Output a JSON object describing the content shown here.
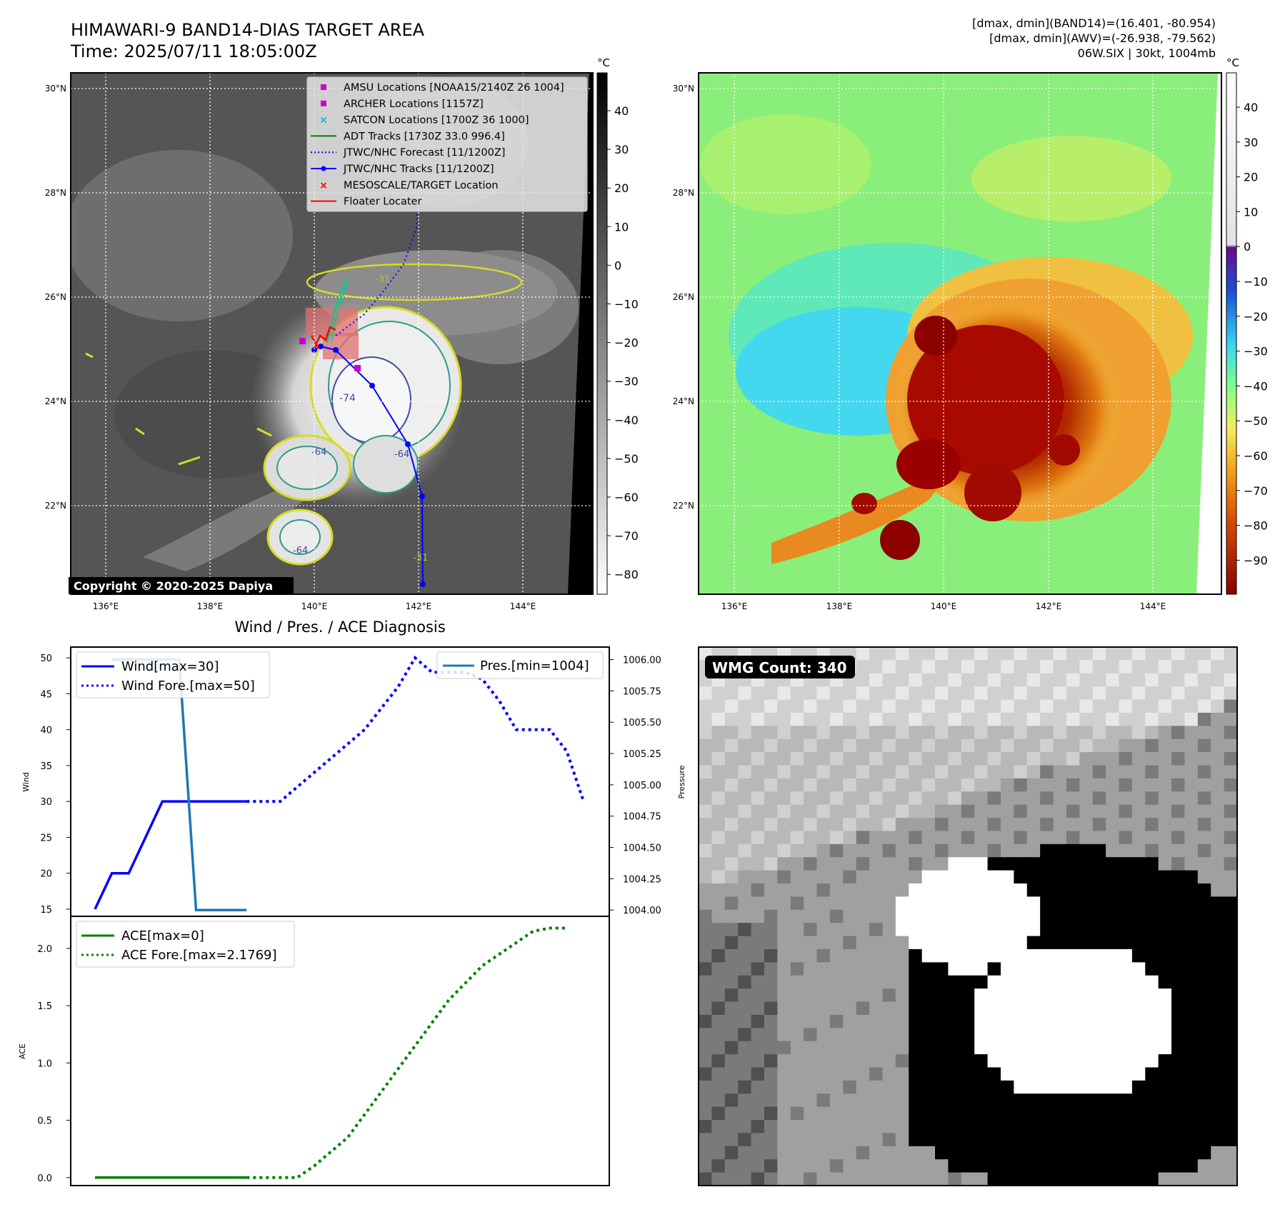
{
  "header": {
    "title_line1": "HIMAWARI-9 BAND14-DIAS TARGET AREA",
    "title_line2": "Time: 2025/07/11 18:05:00Z",
    "info_line1": "[dmax, dmin](BAND14)=(16.401, -80.954)",
    "info_line2": "[dmax, dmin](AWV)=(-26.938, -79.562)",
    "info_line3": "06W.SIX | 30kt, 1004mb"
  },
  "map_axes": {
    "lat_labels": [
      "30°N",
      "28°N",
      "26°N",
      "24°N",
      "22°N"
    ],
    "lon_labels": [
      "136°E",
      "138°E",
      "140°E",
      "142°E",
      "144°E"
    ],
    "colorbar_unit": "°C"
  },
  "panel_ir": {
    "copyright": "Copyright © 2020-2025 Dapiya",
    "colorbar_ticks": [
      "40",
      "30",
      "20",
      "10",
      "0",
      "−10",
      "−20",
      "−30",
      "−40",
      "−50",
      "−60",
      "−70",
      "−80"
    ],
    "legend": [
      {
        "label": "AMSU Locations [NOAA15/2140Z 26 1004]",
        "marker": "square",
        "color": "#cc00cc"
      },
      {
        "label": "ARCHER Locations [1157Z]",
        "marker": "square",
        "color": "#cc00cc"
      },
      {
        "label": "SATCON Locations [1700Z 36 1000]",
        "marker": "x",
        "color": "#00bbbb"
      },
      {
        "label": "ADT Tracks [1730Z 33.0 996.4]",
        "marker": "line",
        "color": "#008000"
      },
      {
        "label": "JTWC/NHC Forecast [11/1200Z]",
        "marker": "dotted",
        "color": "#0000ff"
      },
      {
        "label": "JTWC/NHC Tracks [11/1200Z]",
        "marker": "line-dot",
        "color": "#0000ff"
      },
      {
        "label": "MESOSCALE/TARGET Location",
        "marker": "x",
        "color": "#ff0000"
      },
      {
        "label": "Floater Locater",
        "marker": "line",
        "color": "#ff0000"
      }
    ],
    "contour_labels": [
      "-31",
      "-31",
      "-64",
      "-64",
      "-64",
      "-31",
      "-74"
    ]
  },
  "panel_awv": {
    "colorbar_ticks": [
      "40",
      "30",
      "20",
      "10",
      "0",
      "−10",
      "−20",
      "−30",
      "−40",
      "−50",
      "−60",
      "−70",
      "−80",
      "−90"
    ]
  },
  "wmg": {
    "badge": "WMG Count: 340"
  },
  "chart_data": [
    {
      "type": "line",
      "title": "Wind / Pres. / ACE Diagnosis",
      "ylabel": "Wind",
      "ylabel_right": "Pressure",
      "ylim": [
        14,
        51.5
      ],
      "ylim_right": [
        1003.95,
        1006.1
      ],
      "yticks": [
        "50",
        "45",
        "40",
        "35",
        "30",
        "25",
        "20",
        "15"
      ],
      "yticks_right": [
        "1006.00",
        "1005.75",
        "1005.50",
        "1005.25",
        "1005.00",
        "1004.75",
        "1004.50",
        "1004.25",
        "1004.00"
      ],
      "legend_left": [
        "Wind[max=30]",
        "Wind Fore.[max=50]"
      ],
      "legend_right": [
        "Pres.[min=1004]"
      ],
      "x": [
        0,
        1,
        2,
        3,
        4,
        5,
        6,
        7,
        8,
        9,
        10,
        11,
        12,
        13,
        14,
        15,
        16,
        17,
        18,
        19,
        20,
        21,
        22,
        23,
        24,
        25
      ],
      "series": [
        {
          "name": "Wind[max=30]",
          "color": "#0000ff",
          "style": "solid",
          "axis": "left",
          "points": [
            [
              0,
              15
            ],
            [
              1,
              20
            ],
            [
              2,
              20
            ],
            [
              4,
              30
            ],
            [
              9,
              30
            ]
          ]
        },
        {
          "name": "Wind Fore.[max=50]",
          "color": "#0000ff",
          "style": "dotted",
          "axis": "left",
          "points": [
            [
              9,
              30
            ],
            [
              11,
              30
            ],
            [
              12.5,
              33
            ],
            [
              14,
              36
            ],
            [
              16,
              40
            ],
            [
              18,
              46
            ],
            [
              19,
              50
            ],
            [
              20,
              48
            ],
            [
              21,
              48
            ],
            [
              22,
              48
            ],
            [
              23,
              47
            ],
            [
              24,
              44
            ],
            [
              25,
              40
            ],
            [
              26,
              40
            ],
            [
              27,
              40
            ],
            [
              28,
              37
            ],
            [
              29,
              30
            ]
          ]
        },
        {
          "name": "Pres.[min=1004]",
          "color": "#1f77b4",
          "style": "solid",
          "axis": "right",
          "points": [
            [
              1,
              1006.0
            ],
            [
              5,
              1006.0
            ],
            [
              6,
              1004.0
            ],
            [
              9,
              1004.0
            ]
          ]
        }
      ]
    },
    {
      "type": "line",
      "ylabel": "ACE",
      "ylim": [
        -0.07,
        2.28
      ],
      "yticks": [
        "2.0",
        "1.5",
        "1.0",
        "0.5",
        "0.0"
      ],
      "legend": [
        "ACE[max=0]",
        "ACE Fore.[max=2.1769]"
      ],
      "series": [
        {
          "name": "ACE[max=0]",
          "color": "#008000",
          "style": "solid",
          "points": [
            [
              0,
              0
            ],
            [
              9,
              0
            ]
          ]
        },
        {
          "name": "ACE Fore.[max=2.1769]",
          "color": "#008000",
          "style": "dotted",
          "points": [
            [
              9,
              0
            ],
            [
              12,
              0
            ],
            [
              13,
              0.1
            ],
            [
              15,
              0.35
            ],
            [
              17,
              0.75
            ],
            [
              19,
              1.15
            ],
            [
              21,
              1.55
            ],
            [
              23,
              1.85
            ],
            [
              25,
              2.05
            ],
            [
              26,
              2.15
            ],
            [
              27,
              2.1769
            ],
            [
              28,
              2.1769
            ]
          ]
        }
      ]
    }
  ]
}
